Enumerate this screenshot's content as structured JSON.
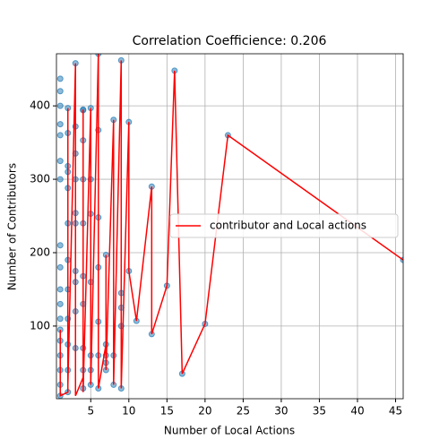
{
  "chart_data": {
    "type": "scatter",
    "title": "Correlation Coefficience: 0.206",
    "x_label": "Number of Local Actions",
    "y_label": "Number of Contributors",
    "xlim": [
      0.5,
      46
    ],
    "ylim": [
      1,
      471
    ],
    "xticks": [
      5,
      10,
      15,
      20,
      25,
      30,
      35,
      40,
      45
    ],
    "yticks": [
      100,
      200,
      300,
      400
    ],
    "grid": true,
    "legend": "center right",
    "series": [
      {
        "kind": "scatter",
        "color": "#1f77b4",
        "x": [
          1,
          1,
          1,
          1,
          1,
          1,
          1,
          1,
          1,
          1,
          1,
          1,
          1,
          1,
          1,
          1,
          1,
          1,
          2,
          2,
          2,
          2,
          2,
          2,
          2,
          2,
          2,
          2,
          2,
          2,
          3,
          3,
          3,
          3,
          3,
          3,
          3,
          3,
          3,
          3,
          4,
          4,
          4,
          4,
          4,
          4,
          4,
          4,
          4,
          4,
          5,
          5,
          5,
          5,
          5,
          5,
          5,
          6,
          6,
          6,
          6,
          6,
          6,
          6,
          7,
          7,
          7,
          7,
          7,
          8,
          8,
          8,
          9,
          9,
          9,
          9,
          9,
          10,
          10,
          11,
          13,
          13,
          15,
          16,
          17,
          20,
          23,
          46
        ],
        "y": [
          437,
          420,
          400,
          375,
          360,
          325,
          300,
          210,
          180,
          150,
          130,
          110,
          95,
          80,
          60,
          40,
          20,
          5,
          397,
          363,
          318,
          310,
          288,
          240,
          190,
          150,
          110,
          75,
          40,
          10,
          458,
          372,
          335,
          300,
          254,
          240,
          175,
          160,
          120,
          70,
          395,
          394,
          353,
          300,
          240,
          168,
          130,
          70,
          40,
          15,
          397,
          300,
          253,
          160,
          60,
          40,
          20,
          471,
          367,
          248,
          180,
          106,
          60,
          15,
          197,
          75,
          60,
          50,
          40,
          381,
          60,
          20,
          462,
          145,
          125,
          100,
          15,
          378,
          175,
          107,
          290,
          89,
          155,
          448,
          35,
          103,
          360,
          190
        ]
      },
      {
        "kind": "line",
        "name": "contributor and Local actions",
        "color": "#ff0000",
        "x": [
          1,
          1,
          2,
          2,
          2,
          3,
          3,
          4,
          4,
          4,
          5,
          5,
          6,
          6,
          7,
          7,
          7,
          8,
          8,
          9,
          9,
          10,
          10,
          11,
          13,
          13,
          15,
          16,
          17,
          20,
          23,
          46
        ],
        "y": [
          95,
          5,
          10,
          397,
          20,
          458,
          5,
          30,
          395,
          10,
          397,
          20,
          471,
          15,
          75,
          197,
          40,
          381,
          20,
          462,
          15,
          378,
          175,
          107,
          290,
          89,
          155,
          448,
          35,
          103,
          360,
          190
        ]
      }
    ]
  }
}
